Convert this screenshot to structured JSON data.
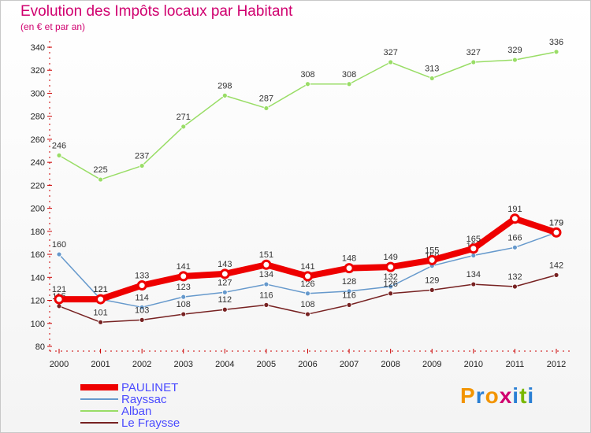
{
  "header": {
    "title": "Evolution des Impôts locaux par Habitant",
    "subtitle": "(en € et par an)"
  },
  "logo": {
    "letters": [
      "P",
      "r",
      "o",
      "x",
      "i",
      "t",
      "i"
    ],
    "colors": [
      "#f29400",
      "#2a7fd4",
      "#f29400",
      "#d0006f",
      "#2a7fd4",
      "#7ab800",
      "#2a7fd4"
    ]
  },
  "chart_data": {
    "type": "line",
    "x": [
      "2000",
      "2001",
      "2002",
      "2003",
      "2004",
      "2005",
      "2006",
      "2007",
      "2008",
      "2009",
      "2010",
      "2011",
      "2012"
    ],
    "ylim": [
      80,
      340
    ],
    "yticks": [
      80,
      100,
      120,
      140,
      160,
      180,
      200,
      220,
      240,
      260,
      280,
      300,
      320,
      340
    ],
    "grid": false,
    "legend_position": "bottom-left",
    "series": [
      {
        "name": "Alban",
        "color": "#99dd66",
        "values": [
          246,
          225,
          237,
          271,
          298,
          287,
          308,
          308,
          327,
          313,
          327,
          329,
          336
        ]
      },
      {
        "name": "Rayssac",
        "color": "#6699cc",
        "values": [
          160,
          121,
          114,
          123,
          127,
          134,
          126,
          128,
          132,
          150,
          159,
          166,
          179
        ]
      },
      {
        "name": "Le Fraysse",
        "color": "#772222",
        "values": [
          115,
          101,
          103,
          108,
          112,
          116,
          108,
          116,
          126,
          129,
          134,
          132,
          142
        ]
      },
      {
        "name": "PAULINET",
        "color": "#ee0000",
        "values": [
          121,
          121,
          133,
          141,
          143,
          151,
          141,
          148,
          149,
          155,
          165,
          191,
          179
        ]
      }
    ],
    "legend_order": [
      "PAULINET",
      "Rayssac",
      "Alban",
      "Le Fraysse"
    ]
  }
}
